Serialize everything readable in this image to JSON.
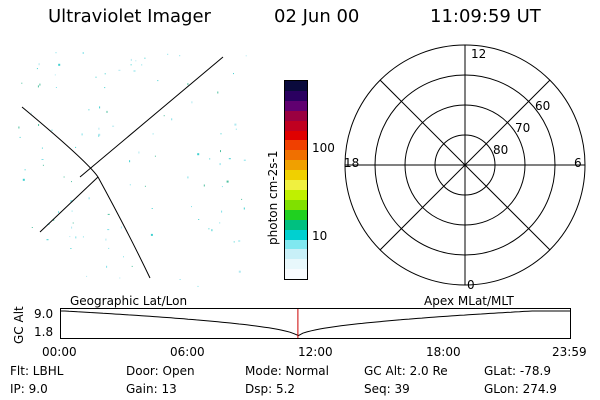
{
  "header": {
    "title": "Ultraviolet Imager",
    "date": "02 Jun 00",
    "time": "11:09:59 UT"
  },
  "colorbar": {
    "label": "photon cm-2s-1",
    "ticks": [
      "100",
      "10"
    ],
    "colors": [
      "#0a0a3c",
      "#2a0060",
      "#600070",
      "#9a0040",
      "#c00020",
      "#e00000",
      "#f04000",
      "#f07000",
      "#f0a000",
      "#f0d000",
      "#f0f040",
      "#c0f000",
      "#80e000",
      "#20d020",
      "#00c080",
      "#00d0d0",
      "#80e8f0",
      "#c8f0f8",
      "#e8f8fc",
      "#f8fcff"
    ]
  },
  "polar": {
    "mlt_labels": {
      "top": "12",
      "left": "18",
      "right": "6",
      "bottom": "0"
    },
    "lat_labels": [
      "60",
      "70",
      "80"
    ]
  },
  "timeline": {
    "ylabel": "GC Alt",
    "ymax": "9.0",
    "ymin": "1.8",
    "left_label": "Geographic Lat/Lon",
    "right_label": "Apex MLat/MLT",
    "x_ticks": [
      "00:00",
      "06:00",
      "12:00",
      "18:00",
      "23:59"
    ],
    "marker_hour": 11.17,
    "marker_color": "#cc0000"
  },
  "info": {
    "flt": "Flt: LBHL",
    "ip": "IP: 9.0",
    "door": "Door: Open",
    "gain": "Gain: 13",
    "mode": "Mode: Normal",
    "dsp": "Dsp: 5.2",
    "gcalt": "GC Alt: 2.0 Re",
    "seq": "Seq: 39",
    "glat": "GLat: -78.9",
    "glon": "GLon: 274.9"
  }
}
